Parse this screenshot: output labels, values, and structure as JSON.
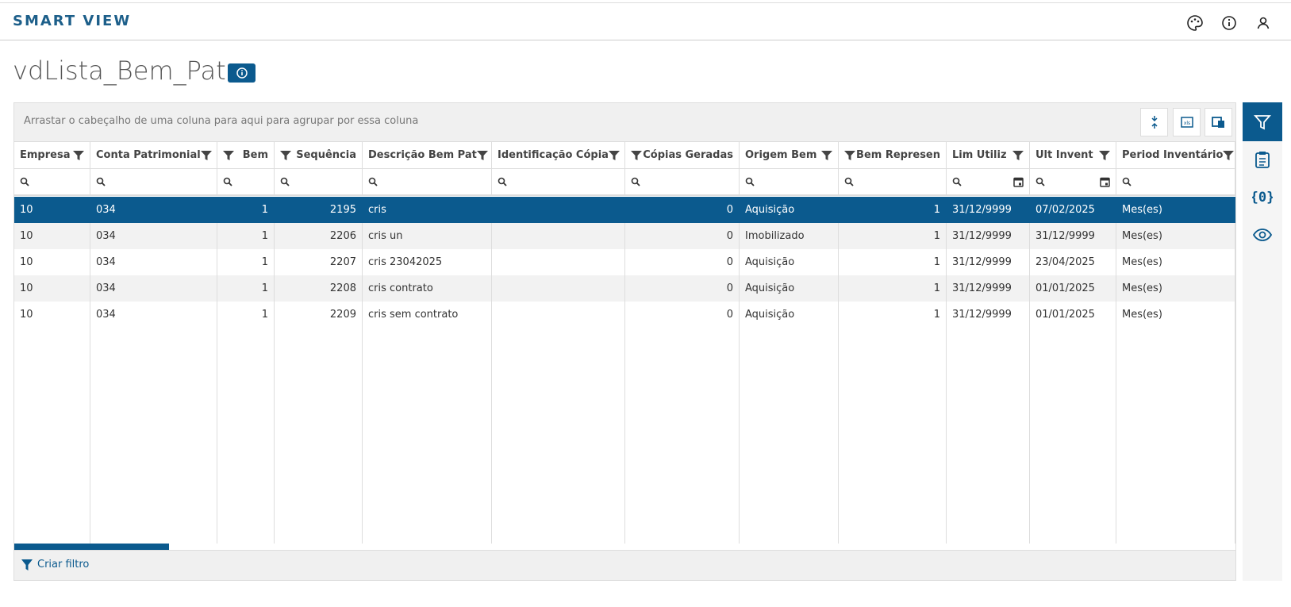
{
  "header": {
    "title": "SMART VIEW"
  },
  "page": {
    "title": "vdLista_Bem_Pat"
  },
  "grid": {
    "group_hint": "Arrastar o cabeçalho de uma coluna para aqui para agrupar por essa coluna",
    "columns": [
      "Empresa",
      "Conta Patrimonial",
      "Bem",
      "Sequência",
      "Descrição Bem Pat",
      "Identificação Cópia",
      "Cópias Geradas",
      "Origem Bem",
      "Bem Represen",
      "Lim Utiliz",
      "Ult Invent",
      "Period Inventário"
    ],
    "rows": [
      [
        "10",
        "034",
        "1",
        "2195",
        "cris",
        "",
        "0",
        "Aquisição",
        "1",
        "31/12/9999",
        "07/02/2025",
        "Mes(es)"
      ],
      [
        "10",
        "034",
        "1",
        "2206",
        "cris un",
        "",
        "0",
        "Imobilizado",
        "1",
        "31/12/9999",
        "31/12/9999",
        "Mes(es)"
      ],
      [
        "10",
        "034",
        "1",
        "2207",
        "cris 23042025",
        "",
        "0",
        "Aquisição",
        "1",
        "31/12/9999",
        "23/04/2025",
        "Mes(es)"
      ],
      [
        "10",
        "034",
        "1",
        "2208",
        "cris contrato",
        "",
        "0",
        "Aquisição",
        "1",
        "31/12/9999",
        "01/01/2025",
        "Mes(es)"
      ],
      [
        "10",
        "034",
        "1",
        "2209",
        "cris sem contrato",
        "",
        "0",
        "Aquisição",
        "1",
        "31/12/9999",
        "01/01/2025",
        "Mes(es)"
      ]
    ],
    "footer_action": "Criar filtro"
  }
}
